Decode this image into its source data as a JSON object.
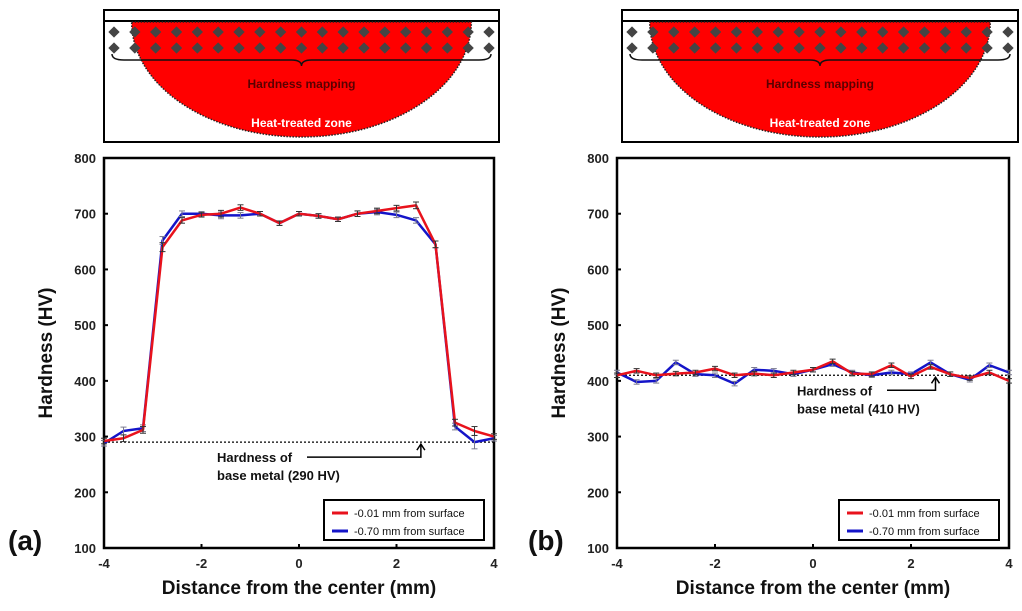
{
  "figure": {
    "colors": {
      "series_surface": "#e8121c",
      "series_deep": "#1414c8",
      "heat_zone": "#ff0000",
      "indent_marker": "#444444",
      "axes": "#000000"
    },
    "schematic": {
      "mapping_label": "Hardness mapping",
      "zone_label": "Heat-treated zone",
      "indent_rows": 2,
      "indents_per_row": 19
    }
  },
  "chart_data": [
    {
      "type": "line",
      "panel_label": "(a)",
      "title": "",
      "xlabel": "Distance from the center (mm)",
      "ylabel": "Hardness (HV)",
      "xlim": [
        -4,
        4
      ],
      "ylim": [
        100,
        800
      ],
      "xticks": [
        "-4",
        "-2",
        "0",
        "2",
        "4"
      ],
      "yticks": [
        "100",
        "200",
        "300",
        "400",
        "500",
        "600",
        "700",
        "800"
      ],
      "grid": false,
      "legend_position": "bottom-right",
      "x": [
        -4.0,
        -3.6,
        -3.2,
        -2.8,
        -2.4,
        -2.0,
        -1.6,
        -1.2,
        -0.8,
        -0.4,
        0.0,
        0.4,
        0.8,
        1.2,
        1.6,
        2.0,
        2.4,
        2.8,
        3.2,
        3.6,
        4.0
      ],
      "series": [
        {
          "name": "-0.01 mm from surface",
          "color": "#e8121c",
          "values": [
            292,
            297,
            312,
            640,
            688,
            698,
            700,
            711,
            700,
            683,
            700,
            696,
            690,
            700,
            705,
            710,
            715,
            645,
            325,
            310,
            300
          ],
          "errors": [
            5,
            6,
            6,
            8,
            5,
            4,
            6,
            5,
            4,
            4,
            4,
            4,
            4,
            5,
            5,
            5,
            6,
            6,
            6,
            8,
            5
          ]
        },
        {
          "name": "-0.70 mm from surface",
          "color": "#1414c8",
          "values": [
            288,
            310,
            315,
            652,
            700,
            700,
            697,
            697,
            700,
            683,
            700,
            696,
            690,
            700,
            703,
            698,
            688,
            645,
            318,
            290,
            297
          ],
          "errors": [
            5,
            7,
            6,
            7,
            5,
            4,
            6,
            5,
            4,
            4,
            4,
            4,
            4,
            5,
            5,
            5,
            5,
            6,
            6,
            12,
            5
          ]
        }
      ],
      "reference_line": {
        "value": 290,
        "style": "dotted"
      },
      "annotation": {
        "line1": "Hardness of",
        "line2": "base metal (290 HV)",
        "arrow_x": 2.5
      }
    },
    {
      "type": "line",
      "panel_label": "(b)",
      "title": "",
      "xlabel": "Distance from the center (mm)",
      "ylabel": "Hardness (HV)",
      "xlim": [
        -4,
        4
      ],
      "ylim": [
        100,
        800
      ],
      "xticks": [
        "-4",
        "-2",
        "0",
        "2",
        "4"
      ],
      "yticks": [
        "100",
        "200",
        "300",
        "400",
        "500",
        "600",
        "700",
        "800"
      ],
      "grid": false,
      "legend_position": "bottom-right",
      "x": [
        -4.0,
        -3.6,
        -3.2,
        -2.8,
        -2.4,
        -2.0,
        -1.6,
        -1.2,
        -0.8,
        -0.4,
        0.0,
        0.4,
        0.8,
        1.2,
        1.6,
        2.0,
        2.4,
        2.8,
        3.2,
        3.6,
        4.0
      ],
      "series": [
        {
          "name": "-0.01 mm from surface",
          "color": "#e8121c",
          "values": [
            410,
            418,
            410,
            413,
            415,
            422,
            410,
            413,
            410,
            415,
            420,
            435,
            413,
            412,
            428,
            408,
            425,
            412,
            405,
            415,
            400
          ],
          "errors": [
            4,
            4,
            4,
            4,
            4,
            4,
            4,
            4,
            4,
            4,
            4,
            4,
            4,
            4,
            4,
            4,
            4,
            4,
            4,
            4,
            4
          ]
        },
        {
          "name": "-0.70 mm from surface",
          "color": "#1414c8",
          "values": [
            415,
            398,
            400,
            433,
            412,
            410,
            395,
            420,
            418,
            412,
            420,
            430,
            415,
            410,
            415,
            412,
            433,
            412,
            402,
            428,
            415
          ],
          "errors": [
            4,
            4,
            4,
            4,
            4,
            4,
            4,
            4,
            4,
            4,
            4,
            4,
            4,
            4,
            4,
            4,
            4,
            4,
            4,
            4,
            4
          ]
        }
      ],
      "reference_line": {
        "value": 410,
        "style": "dotted"
      },
      "annotation": {
        "line1": "Hardness of",
        "line2": "base metal (410 HV)",
        "arrow_x": 2.5
      }
    }
  ]
}
